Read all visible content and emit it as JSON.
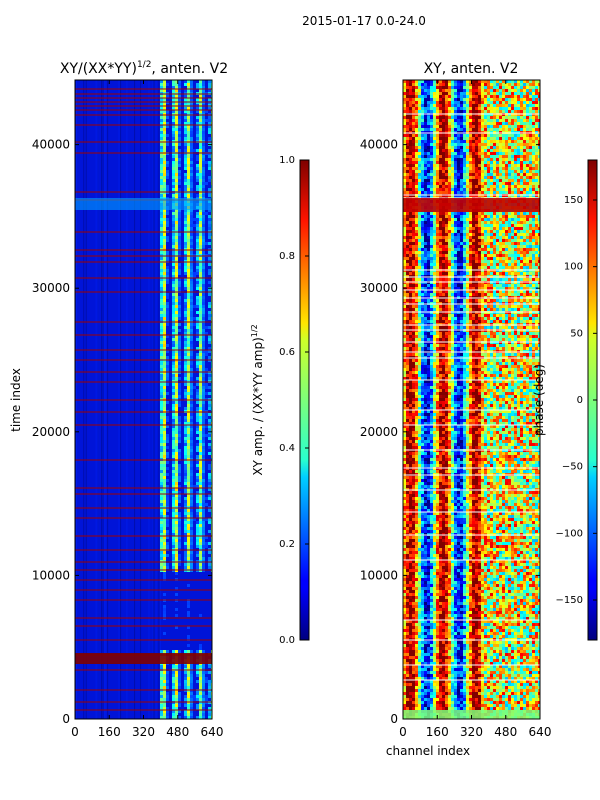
{
  "suptitle": "2015-01-17 0.0-24.0",
  "chart_data": [
    {
      "type": "heatmap",
      "id": "amp",
      "title_main": "XY/(XX*YY)",
      "title_exp": "1/2",
      "title_tail": ", anten. V2",
      "xlabel": "",
      "ylabel": "time index",
      "xlim": [
        0,
        640
      ],
      "ylim": [
        0,
        44500
      ],
      "xticks": [
        0,
        160,
        320,
        480,
        640
      ],
      "yticks": [
        0,
        10000,
        20000,
        30000,
        40000
      ],
      "colorbar": {
        "label": "XY amp. / (XX*YY amp)",
        "label_exp": "1/2",
        "min": 0.0,
        "max": 1.0,
        "ticks": [
          "0.0",
          "0.2",
          "0.4",
          "0.6",
          "0.8",
          "1.0"
        ],
        "tick_values": [
          0.0,
          0.2,
          0.4,
          0.6,
          0.8,
          1.0
        ]
      }
    },
    {
      "type": "heatmap",
      "id": "phase",
      "title_main": "XY, anten. V2",
      "xlabel": "channel index",
      "ylabel": "",
      "xlim": [
        0,
        640
      ],
      "ylim": [
        0,
        44500
      ],
      "xticks": [
        0,
        160,
        320,
        480,
        640
      ],
      "yticks": [
        0,
        10000,
        20000,
        30000,
        40000
      ],
      "colorbar": {
        "label": "phase (deg)",
        "min": -180,
        "max": 180,
        "ticks": [
          "−150",
          "−100",
          "−50",
          "0",
          "50",
          "100",
          "150"
        ],
        "tick_values": [
          -150,
          -100,
          -50,
          0,
          50,
          100,
          150
        ]
      }
    }
  ]
}
